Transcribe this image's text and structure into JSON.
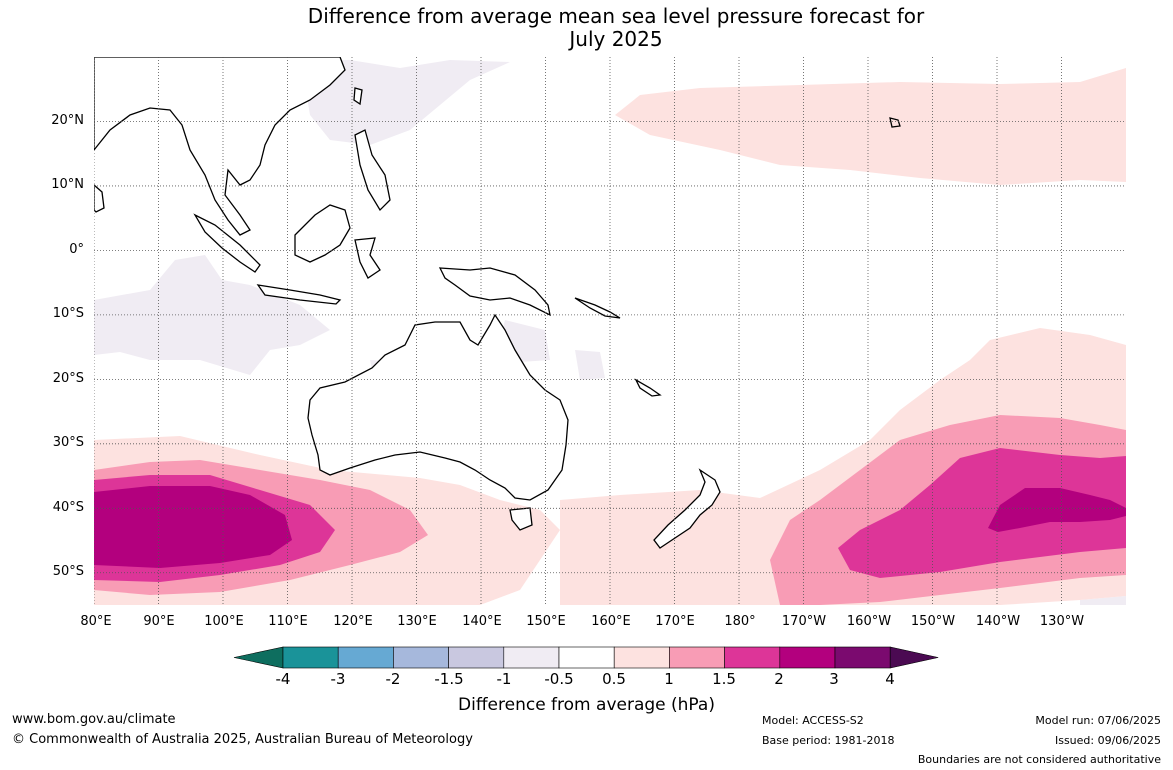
{
  "title": {
    "line1": "Difference from average mean sea level pressure forecast for",
    "line2": "July 2025"
  },
  "map": {
    "lat_labels": [
      "20°N",
      "10°N",
      "0°",
      "10°S",
      "20°S",
      "30°S",
      "40°S",
      "50°S"
    ],
    "lon_labels": [
      "80°E",
      "90°E",
      "100°E",
      "110°E",
      "120°E",
      "130°E",
      "140°E",
      "150°E",
      "160°E",
      "170°E",
      "180°",
      "170°W",
      "160°W",
      "150°W",
      "140°W",
      "130°W"
    ],
    "extent": {
      "lon_min": 80,
      "lon_max": 240,
      "lat_min": -55,
      "lat_max": 30
    },
    "variable": "mean sea level pressure anomaly"
  },
  "colorbar": {
    "label": "Difference from average (hPa)",
    "ticks": [
      "-4",
      "-3",
      "-2",
      "-1.5",
      "-1",
      "-0.5",
      "0.5",
      "1",
      "1.5",
      "2",
      "3",
      "4"
    ],
    "colors": [
      "#0e6e5f",
      "#1a9399",
      "#66a9d3",
      "#a6b8dc",
      "#c9c8e0",
      "#f0ecf3",
      "#ffffff",
      "#fde2e0",
      "#f89cb5",
      "#dd3598",
      "#b3007e",
      "#7b0a6f",
      "#4b0a52"
    ]
  },
  "footer": {
    "website": "www.bom.gov.au/climate",
    "copyright": "© Commonwealth of Australia 2025, Australian Bureau of Meteorology",
    "model": "Model: ACCESS-S2",
    "base_period": "Base period: 1981-2018",
    "model_run": "Model run: 07/06/2025",
    "issued": "Issued: 09/06/2025",
    "disclaimer": "Boundaries are not considered authoritative"
  }
}
